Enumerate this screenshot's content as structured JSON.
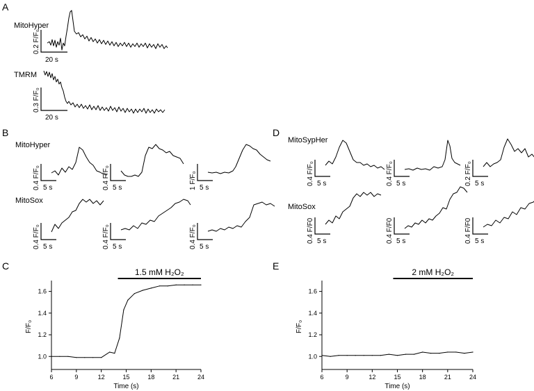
{
  "panel_letters": {
    "a": "A",
    "b": "B",
    "c": "C",
    "d": "D",
    "e": "E"
  },
  "panel_a": {
    "rows": [
      {
        "label": "MitoHyper",
        "y_scale": "0.2 F/F₀",
        "x_scale": "20 s"
      },
      {
        "label": "TMRM",
        "y_scale": "0.3 F/F₀",
        "x_scale": "20 s"
      }
    ]
  },
  "panel_b": {
    "row_labels": [
      "MitoHyper",
      "MitoSox"
    ],
    "x_scale": "5 s",
    "y_scales": [
      [
        "0.4 F/F₀",
        "0.4 F/F₀",
        "1 F/F₀"
      ],
      [
        "0.4 F/F₀",
        "0.4 F/F₀",
        "0.4 F/F₀"
      ]
    ]
  },
  "panel_d": {
    "row_labels": [
      "MitoSypHer",
      "MitoSox"
    ],
    "x_scale": "5 s",
    "y_scales": [
      [
        "0.4 F/F₀",
        "0.4 F/F₀",
        "0.2 F/F₀"
      ],
      [
        "0.4 F/F0",
        "0.4 F/F0",
        "0.4 F/F0"
      ]
    ]
  },
  "chart_data": [
    {
      "panel": "C",
      "type": "line",
      "treatment_label": "1.5 mM H₂O₂",
      "treatment_start": 14,
      "treatment_end": 24,
      "xlabel": "Time (s)",
      "ylabel": "F/F₀",
      "xlim": [
        6,
        24
      ],
      "ylim": [
        0.88,
        1.7
      ],
      "xticks": [
        6,
        9,
        12,
        15,
        18,
        21,
        24
      ],
      "yticks": [
        1.0,
        1.2,
        1.4,
        1.6
      ],
      "ytick_labels": [
        "1.0",
        "1.2",
        "1.4",
        "1.6"
      ],
      "x": [
        6,
        7,
        8,
        9,
        10,
        11,
        12,
        13,
        13.6,
        14.2,
        14.7,
        15.2,
        16,
        17,
        18,
        19,
        20,
        21,
        22,
        23,
        24
      ],
      "y": [
        1.0,
        1.0,
        1.0,
        0.99,
        0.99,
        0.99,
        0.99,
        1.04,
        1.03,
        1.17,
        1.43,
        1.52,
        1.58,
        1.61,
        1.63,
        1.65,
        1.65,
        1.66,
        1.66,
        1.66,
        1.66
      ]
    },
    {
      "panel": "E",
      "type": "line",
      "treatment_label": "2 mM H₂O₂",
      "treatment_start": 14.5,
      "treatment_end": 24,
      "xlabel": "Time (s)",
      "ylabel": "F/F₀",
      "xlim": [
        6,
        24
      ],
      "ylim": [
        0.88,
        1.7
      ],
      "xticks": [
        6,
        9,
        12,
        15,
        18,
        21,
        24
      ],
      "yticks": [
        1.0,
        1.2,
        1.4,
        1.6
      ],
      "ytick_labels": [
        "1.0",
        "1.2",
        "1.4",
        "1.6"
      ],
      "x": [
        6,
        7,
        8,
        9,
        10,
        11,
        12,
        13,
        14,
        15,
        16,
        17,
        18,
        19,
        20,
        21,
        22,
        23,
        24
      ],
      "y": [
        1.01,
        1.0,
        1.01,
        1.01,
        1.01,
        1.01,
        1.01,
        1.01,
        1.02,
        1.01,
        1.02,
        1.02,
        1.04,
        1.03,
        1.03,
        1.04,
        1.04,
        1.03,
        1.04
      ]
    }
  ]
}
